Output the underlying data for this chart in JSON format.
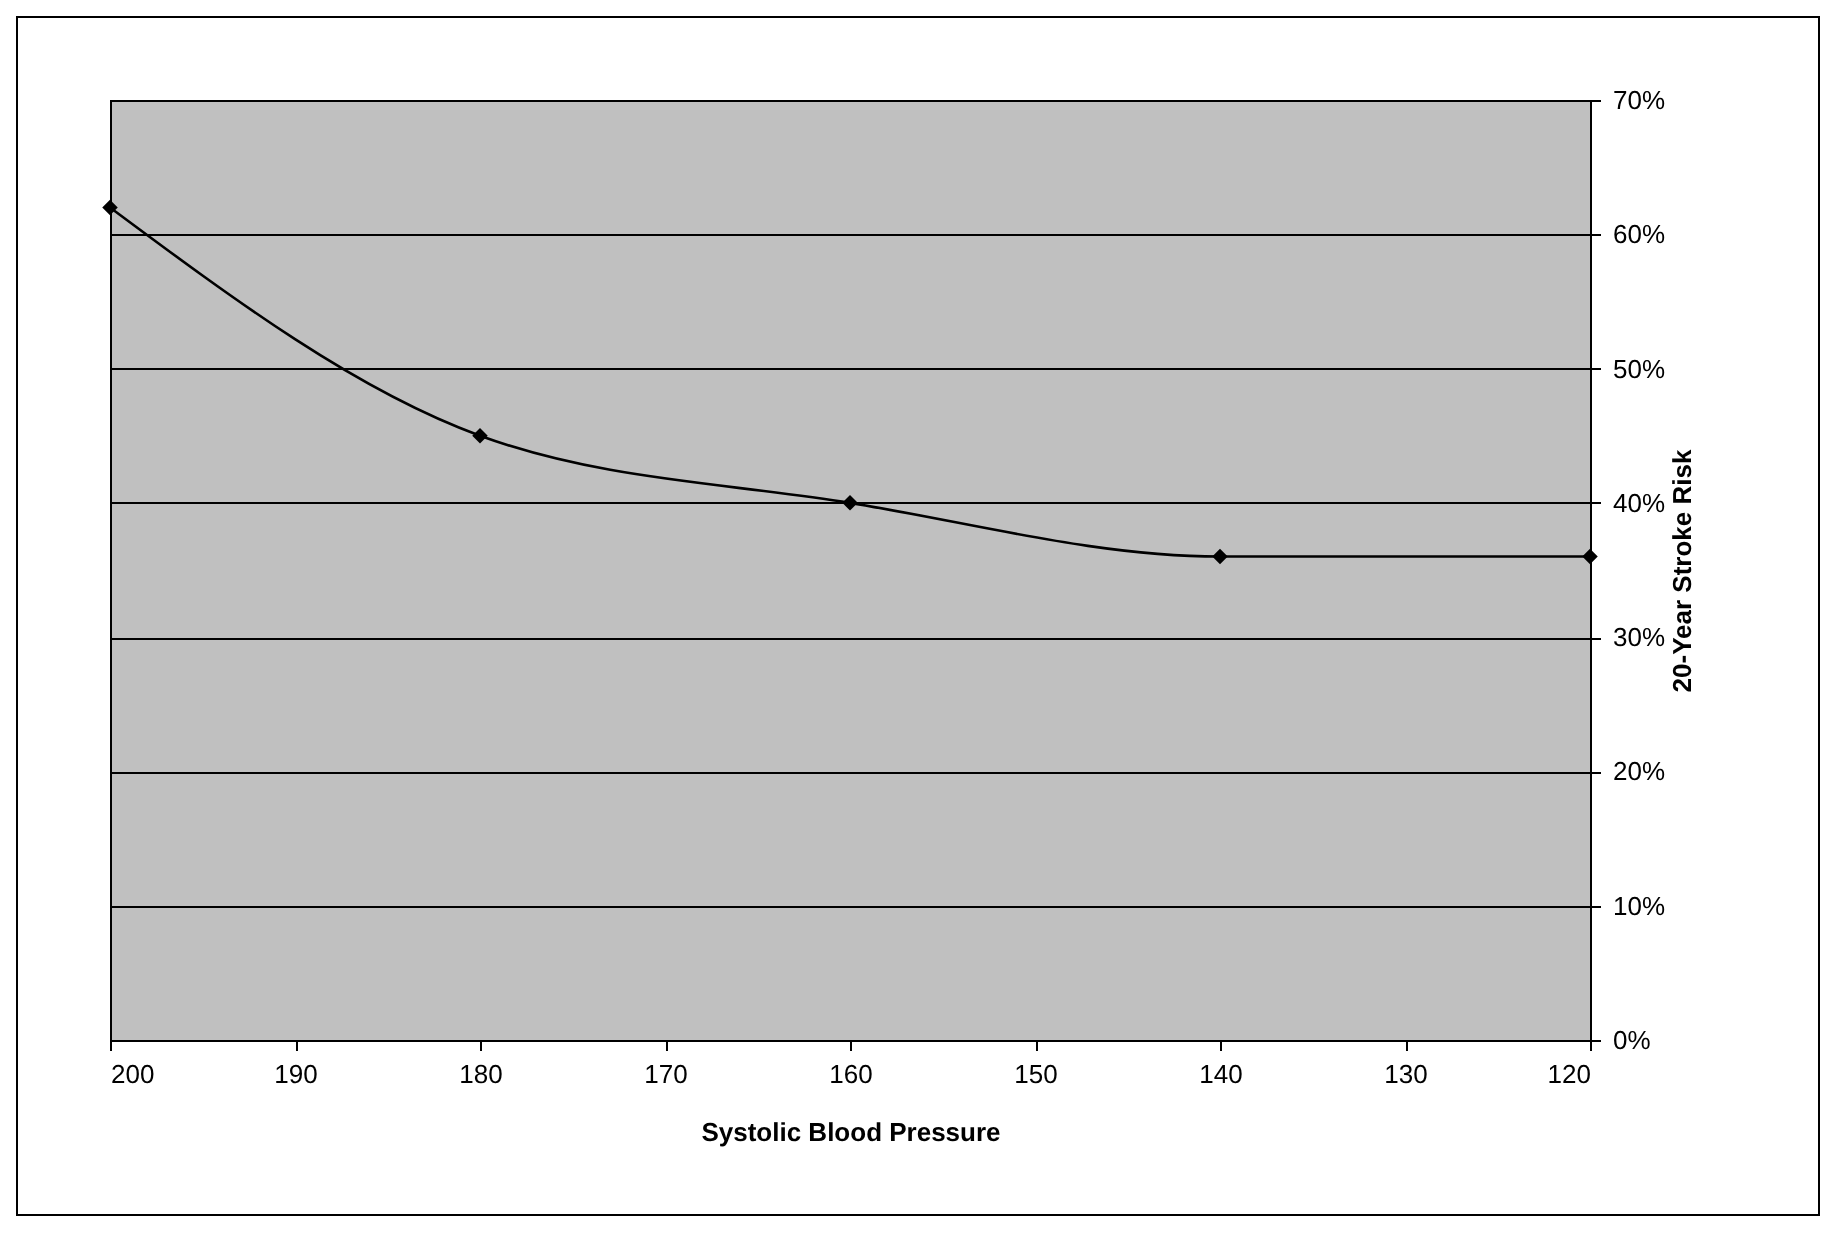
{
  "chart_data": {
    "type": "line",
    "xlabel": "Systolic Blood Pressure",
    "ylabel": "20-Year Stroke Risk",
    "x": [
      200,
      180,
      160,
      140,
      120
    ],
    "series": [
      {
        "color": "#000000",
        "values": [
          62,
          45,
          40,
          36,
          36
        ]
      }
    ],
    "xlim": [
      200,
      120
    ],
    "xticks": [
      200,
      190,
      180,
      170,
      160,
      150,
      140,
      130,
      120
    ],
    "ylim": [
      0,
      70
    ],
    "yticks": [
      {
        "value": 0,
        "label": "0%"
      },
      {
        "value": 10,
        "label": "10%"
      },
      {
        "value": 20,
        "label": "20%"
      },
      {
        "value": 30,
        "label": "30%"
      },
      {
        "value": 40,
        "label": "40%"
      },
      {
        "value": 50,
        "label": "50%"
      },
      {
        "value": 60,
        "label": "60%"
      },
      {
        "value": 70,
        "label": "70%"
      }
    ],
    "grid": "y",
    "marker": "diamond",
    "line_style": "solid"
  }
}
